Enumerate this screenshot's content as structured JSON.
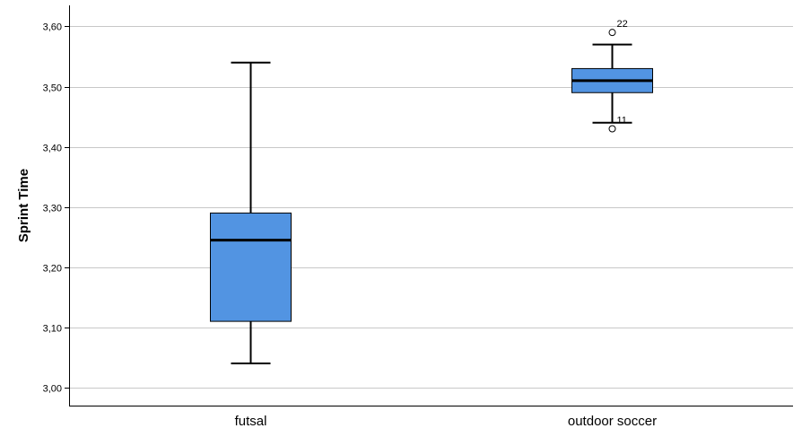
{
  "chart_data": {
    "type": "boxplot",
    "ylabel": "Sprint Time",
    "xlabel": "",
    "ylim": [
      2.97,
      3.635
    ],
    "yticks": [
      {
        "value": 3.0,
        "label": "3,00"
      },
      {
        "value": 3.1,
        "label": "3,10"
      },
      {
        "value": 3.2,
        "label": "3,20"
      },
      {
        "value": 3.3,
        "label": "3,30"
      },
      {
        "value": 3.4,
        "label": "3,40"
      },
      {
        "value": 3.5,
        "label": "3,50"
      },
      {
        "value": 3.6,
        "label": "3,60"
      }
    ],
    "grid": true,
    "box_color": "#5294e2",
    "categories": [
      "futsal",
      "outdoor soccer"
    ],
    "boxes": [
      {
        "category": "futsal",
        "whisker_low": 3.04,
        "q1": 3.11,
        "median": 3.245,
        "q3": 3.29,
        "whisker_high": 3.54,
        "outliers": []
      },
      {
        "category": "outdoor soccer",
        "whisker_low": 3.44,
        "q1": 3.49,
        "median": 3.51,
        "q3": 3.53,
        "whisker_high": 3.57,
        "outliers": [
          {
            "value": 3.59,
            "label": "22"
          },
          {
            "value": 3.43,
            "label": "11"
          }
        ]
      }
    ]
  }
}
